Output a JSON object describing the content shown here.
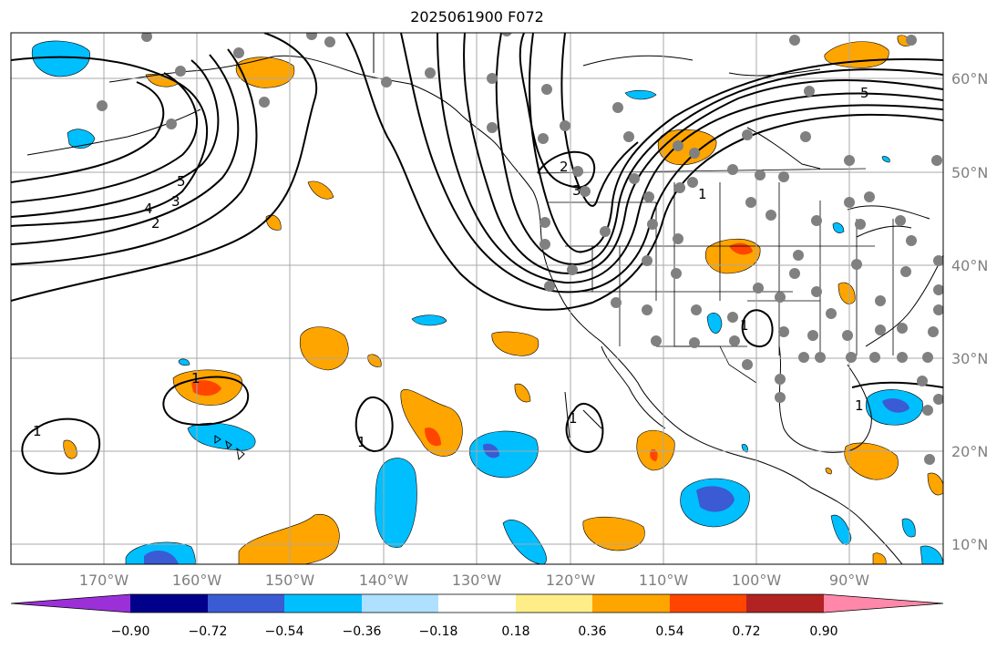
{
  "title": "2025061900 F072",
  "map": {
    "lon_labels": [
      "170°W",
      "160°W",
      "150°W",
      "140°W",
      "130°W",
      "120°W",
      "110°W",
      "100°W",
      "90°W"
    ],
    "lat_labels": [
      "60°N",
      "50°N",
      "40°N",
      "30°N",
      "20°N",
      "10°N"
    ],
    "contour_labels": [
      "5",
      "4",
      "3",
      "2",
      "1",
      "2",
      "3",
      "1",
      "5",
      "1",
      "1",
      "1",
      "1",
      "1"
    ],
    "colors": {
      "positive_light": "#ffee88",
      "positive_orange": "#ffa500",
      "positive_red": "#ff4500",
      "negative_light": "#aee0ff",
      "negative_cyan": "#00bfff",
      "negative_blue": "#3a5bd4",
      "station_dot": "#808080",
      "grid": "#a9a9a9"
    }
  },
  "colorbar": {
    "tick_labels": [
      "−0.90",
      "−0.72",
      "−0.54",
      "−0.36",
      "−0.18",
      "0.18",
      "0.36",
      "0.54",
      "0.72",
      "0.90"
    ],
    "bins": [
      {
        "color": "#9b30d9"
      },
      {
        "color": "#00008b"
      },
      {
        "color": "#3a5bd4"
      },
      {
        "color": "#00bfff"
      },
      {
        "color": "#aee0ff"
      },
      {
        "color": "#ffffff"
      },
      {
        "color": "#ffee88"
      },
      {
        "color": "#ffa500"
      },
      {
        "color": "#ff4500"
      },
      {
        "color": "#b22222"
      },
      {
        "color": "#ff88aa"
      }
    ]
  }
}
